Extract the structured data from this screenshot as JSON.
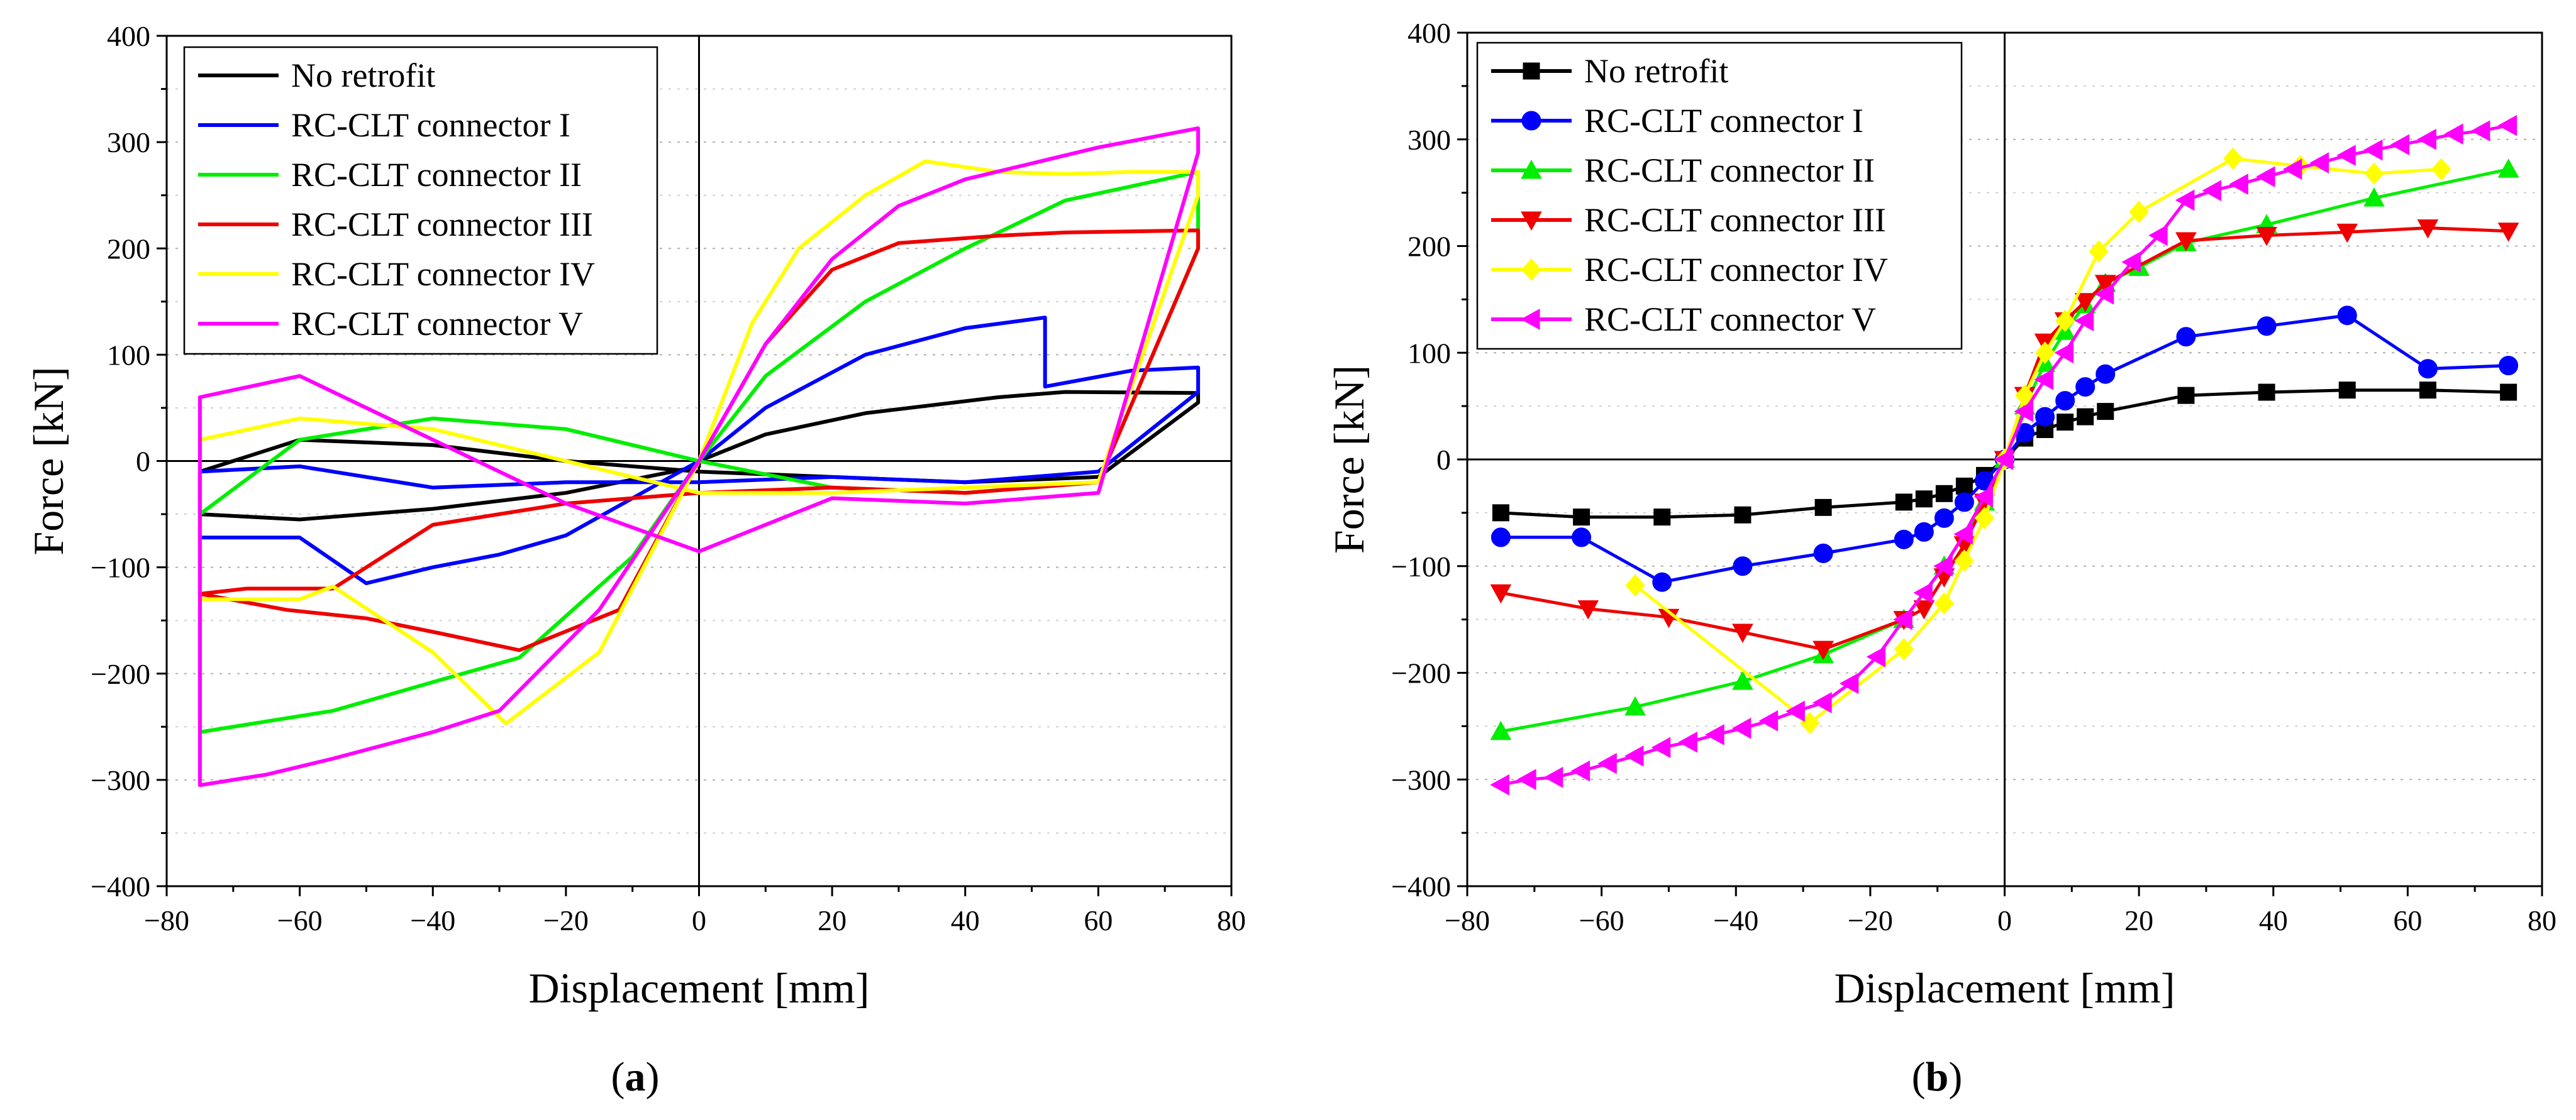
{
  "chart_data": [
    {
      "type": "line",
      "panel_label": "a",
      "title": "",
      "xlabel": "Displacement [mm]",
      "ylabel": "Force [kN]",
      "xlim": [
        -80,
        80
      ],
      "ylim": [
        -400,
        400
      ],
      "xticks": [
        -80,
        -60,
        -40,
        -20,
        0,
        20,
        40,
        60,
        80
      ],
      "yticks": [
        -400,
        -300,
        -200,
        -100,
        0,
        100,
        200,
        300,
        400
      ],
      "xtick_labels": [
        "−80",
        "−60",
        "−40",
        "−20",
        "0",
        "20",
        "40",
        "60",
        "80"
      ],
      "ytick_labels": [
        "−400",
        "−300",
        "−200",
        "−100",
        "0",
        "100",
        "200",
        "300",
        "400"
      ],
      "grid": "horizontal dotted",
      "legend_position": "top-left",
      "series": [
        {
          "name": "No retrofit",
          "color": "#000000",
          "x": [
            0,
            10,
            25,
            45,
            55,
            75,
            75,
            60,
            40,
            20,
            0,
            -20,
            -40,
            -60,
            -75,
            -75,
            -60,
            -40,
            -20,
            0,
            0
          ],
          "y": [
            0,
            25,
            45,
            60,
            65,
            64,
            55,
            -15,
            -20,
            -15,
            -10,
            0,
            15,
            20,
            -10,
            -50,
            -55,
            -45,
            -30,
            -5,
            0
          ]
        },
        {
          "name": "RC-CLT connector I",
          "color": "#0000ff",
          "x": [
            0,
            10,
            25,
            40,
            52,
            52,
            65,
            75,
            75,
            60,
            40,
            20,
            0,
            -20,
            -40,
            -60,
            -75,
            -75,
            -60,
            -50,
            -40,
            -30,
            -20,
            0
          ],
          "y": [
            0,
            50,
            100,
            125,
            135,
            70,
            85,
            88,
            65,
            -10,
            -20,
            -15,
            -20,
            -20,
            -25,
            -5,
            -10,
            -72,
            -72,
            -115,
            -100,
            -88,
            -70,
            0
          ]
        },
        {
          "name": "RC-CLT connector II",
          "color": "#00ee00",
          "x": [
            0,
            10,
            25,
            40,
            55,
            75,
            75,
            60,
            40,
            20,
            0,
            -20,
            -40,
            -60,
            -75,
            -75,
            -55,
            -40,
            -27,
            -10,
            0
          ],
          "y": [
            0,
            80,
            150,
            200,
            245,
            272,
            200,
            -20,
            -30,
            -25,
            0,
            30,
            40,
            20,
            -50,
            -255,
            -235,
            -208,
            -185,
            -90,
            0
          ]
        },
        {
          "name": "RC-CLT connector III",
          "color": "#ee0000",
          "x": [
            0,
            10,
            20,
            30,
            45,
            55,
            75,
            75,
            60,
            40,
            20,
            0,
            -20,
            -40,
            -55,
            -68,
            -75,
            -75,
            -62,
            -50,
            -39,
            -27,
            -12,
            0
          ],
          "y": [
            0,
            110,
            180,
            205,
            212,
            215,
            217,
            200,
            -20,
            -30,
            -25,
            -30,
            -40,
            -60,
            -120,
            -120,
            -125,
            -125,
            -140,
            -148,
            -162,
            -178,
            -140,
            0
          ]
        },
        {
          "name": "RC-CLT connector IV",
          "color": "#ffff00",
          "x": [
            0,
            8,
            15,
            25,
            34,
            45,
            55,
            65,
            75,
            75,
            60,
            40,
            20,
            0,
            -20,
            -40,
            -60,
            -75,
            -75,
            -60,
            -55,
            -40,
            -29,
            -15,
            0
          ],
          "y": [
            0,
            130,
            200,
            250,
            282,
            272,
            270,
            272,
            272,
            250,
            -20,
            -25,
            -30,
            -30,
            0,
            30,
            40,
            20,
            -130,
            -130,
            -118,
            -180,
            -247,
            -180,
            0
          ]
        },
        {
          "name": "RC-CLT connector V",
          "color": "#ff00ff",
          "x": [
            0,
            10,
            20,
            30,
            40,
            50,
            60,
            75,
            75,
            60,
            40,
            20,
            0,
            -20,
            -40,
            -60,
            -75,
            -75,
            -65,
            -55,
            -40,
            -30,
            -15,
            0
          ],
          "y": [
            0,
            110,
            190,
            240,
            265,
            280,
            295,
            313,
            290,
            -30,
            -40,
            -35,
            -85,
            -40,
            20,
            80,
            60,
            -305,
            -295,
            -280,
            -255,
            -235,
            -140,
            0
          ]
        }
      ]
    },
    {
      "type": "line",
      "panel_label": "b",
      "title": "",
      "xlabel": "Displacement [mm]",
      "ylabel": "Force [kN]",
      "xlim": [
        -80,
        80
      ],
      "ylim": [
        -400,
        400
      ],
      "xticks": [
        -80,
        -60,
        -40,
        -20,
        0,
        20,
        40,
        60,
        80
      ],
      "yticks": [
        -400,
        -300,
        -200,
        -100,
        0,
        100,
        200,
        300,
        400
      ],
      "xtick_labels": [
        "−80",
        "−60",
        "−40",
        "−20",
        "0",
        "20",
        "40",
        "60",
        "80"
      ],
      "ytick_labels": [
        "−400",
        "−300",
        "−200",
        "−100",
        "0",
        "100",
        "200",
        "300",
        "400"
      ],
      "grid": "horizontal dotted",
      "legend_position": "top-left",
      "series": [
        {
          "name": "No retrofit",
          "color": "#000000",
          "marker": "square",
          "x": [
            -75,
            -63,
            -51,
            -39,
            -27,
            -15,
            -12,
            -9,
            -6,
            -3,
            0,
            3,
            6,
            9,
            12,
            15,
            27,
            39,
            51,
            63,
            75
          ],
          "y": [
            -50,
            -54,
            -54,
            -52,
            -45,
            -40,
            -37,
            -32,
            -25,
            -15,
            0,
            20,
            28,
            35,
            40,
            45,
            60,
            63,
            65,
            65,
            63
          ]
        },
        {
          "name": "RC-CLT connector I",
          "color": "#0000ff",
          "marker": "circle",
          "x": [
            -75,
            -63,
            -51,
            -39,
            -27,
            -15,
            -12,
            -9,
            -6,
            -3,
            0,
            3,
            6,
            9,
            12,
            15,
            27,
            39,
            51,
            63,
            75
          ],
          "y": [
            -73,
            -73,
            -115,
            -100,
            -88,
            -75,
            -68,
            -55,
            -40,
            -20,
            0,
            25,
            40,
            55,
            68,
            80,
            115,
            125,
            135,
            85,
            88
          ]
        },
        {
          "name": "RC-CLT connector II",
          "color": "#00ee00",
          "marker": "triangle-up",
          "x": [
            -75,
            -55,
            -39,
            -27,
            -15,
            -9,
            -3,
            0,
            3,
            6,
            9,
            12,
            15,
            20,
            27,
            39,
            55,
            75
          ],
          "y": [
            -255,
            -232,
            -208,
            -183,
            -150,
            -100,
            -40,
            0,
            50,
            90,
            120,
            145,
            165,
            180,
            203,
            220,
            245,
            272
          ]
        },
        {
          "name": "RC-CLT connector III",
          "color": "#ee0000",
          "marker": "triangle-down",
          "x": [
            -75,
            -62,
            -50,
            -39,
            -27,
            -15,
            -12,
            -9,
            -6,
            -3,
            0,
            3,
            6,
            9,
            12,
            15,
            27,
            39,
            51,
            63,
            75
          ],
          "y": [
            -125,
            -140,
            -148,
            -162,
            -178,
            -150,
            -140,
            -110,
            -80,
            -40,
            0,
            60,
            110,
            130,
            148,
            165,
            205,
            210,
            213,
            217,
            214
          ]
        },
        {
          "name": "RC-CLT connector IV",
          "color": "#ffff00",
          "marker": "diamond",
          "x": [
            -55,
            -29,
            -15,
            -9,
            -6,
            -3,
            0,
            3,
            6,
            9,
            14,
            20,
            34,
            44,
            55,
            65
          ],
          "y": [
            -118,
            -247,
            -178,
            -135,
            -95,
            -55,
            0,
            60,
            100,
            130,
            195,
            232,
            282,
            275,
            268,
            272
          ]
        },
        {
          "name": "RC-CLT connector V",
          "color": "#ff00ff",
          "marker": "triangle-left",
          "x": [
            -75,
            -71,
            -67,
            -63,
            -59,
            -55,
            -51,
            -47,
            -43,
            -39,
            -35,
            -31,
            -27,
            -23,
            -19,
            -15,
            -12,
            -9,
            -6,
            -3,
            0,
            3,
            6,
            9,
            12,
            15,
            19,
            23,
            27,
            31,
            35,
            39,
            43,
            47,
            51,
            55,
            59,
            63,
            67,
            71,
            75
          ],
          "y": [
            -305,
            -300,
            -298,
            -292,
            -285,
            -278,
            -270,
            -265,
            -258,
            -252,
            -245,
            -236,
            -228,
            -210,
            -185,
            -150,
            -125,
            -100,
            -70,
            -35,
            0,
            45,
            75,
            100,
            130,
            155,
            185,
            210,
            243,
            252,
            258,
            265,
            272,
            278,
            285,
            290,
            295,
            300,
            305,
            308,
            313
          ]
        }
      ]
    }
  ]
}
